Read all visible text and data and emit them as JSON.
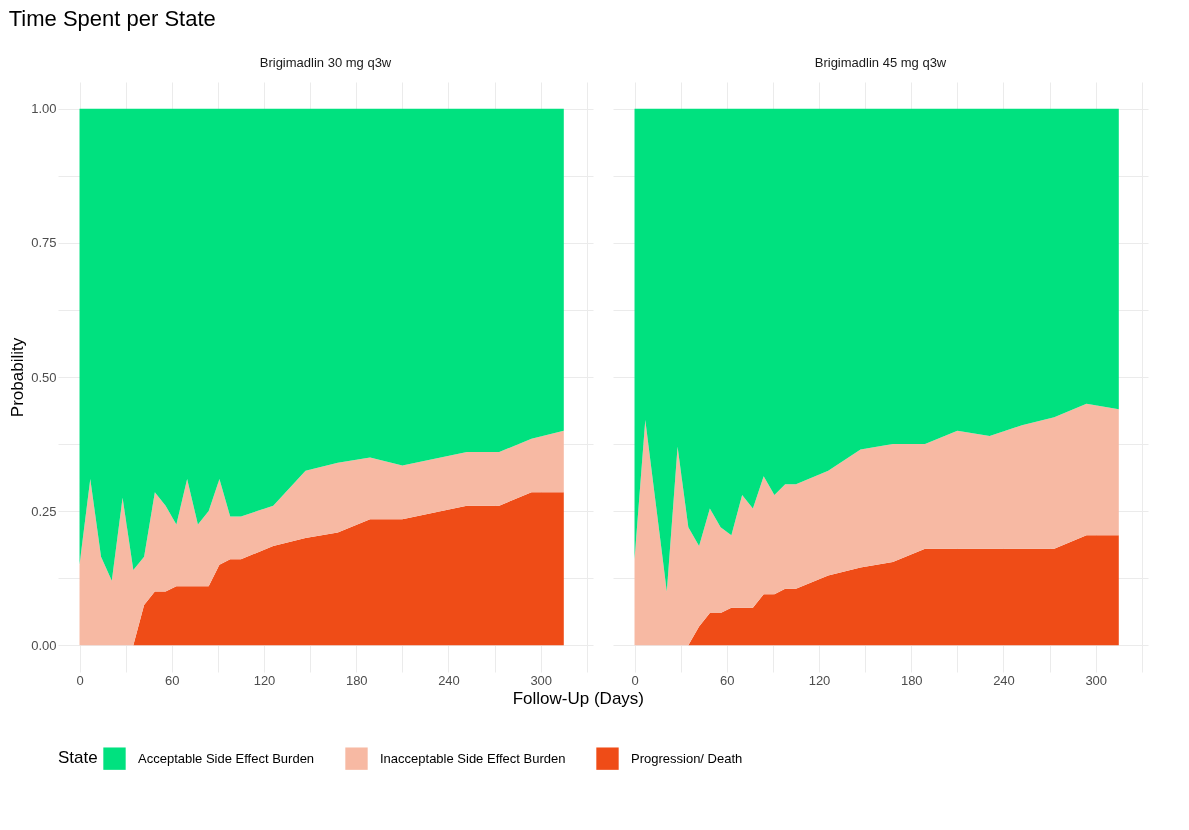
{
  "chart_data": [
    {
      "type": "area",
      "title": "Time Spent per State",
      "subtitle": "Brigimadlin 30 mg q3w",
      "xlabel": "Follow-Up (Days)",
      "ylabel": "Probability",
      "legend_title": "State",
      "legend": "bottom",
      "grid": true,
      "stacked": true,
      "x": [
        0,
        7,
        14,
        21,
        28,
        35,
        42,
        49,
        56,
        63,
        70,
        77,
        84,
        91,
        98,
        105,
        126,
        147,
        168,
        189,
        210,
        252,
        273,
        294,
        315
      ],
      "xlim": [
        -14,
        334
      ],
      "xticks": [
        0,
        {
          "value": 30,
          "label": null
        },
        60,
        {
          "value": 90,
          "label": null
        },
        120,
        {
          "value": 150,
          "label": null
        },
        180,
        {
          "value": 210,
          "label": null
        },
        240,
        {
          "value": 270,
          "label": null
        },
        300,
        {
          "value": 330,
          "label": null
        }
      ],
      "ylim": [
        -0.05,
        1.05
      ],
      "yticks": [
        "0.00",
        {
          "value": 0.125,
          "label": null
        },
        {
          "value": 0.25,
          "label": "0.25"
        },
        {
          "value": 0.375,
          "label": null
        },
        {
          "value": 0.5,
          "label": "0.50"
        },
        {
          "value": 0.625,
          "label": null
        },
        {
          "value": 0.75,
          "label": "0.75"
        },
        {
          "value": 0.875,
          "label": null
        },
        {
          "value": 1,
          "label": "1.00"
        }
      ],
      "series": [
        {
          "name": "Progression/ Death",
          "color": "#ef4c17",
          "values": [
            0,
            0,
            0,
            0,
            0,
            0,
            0.075,
            0.1,
            0.1,
            0.11,
            0.11,
            0.11,
            0.11,
            0.15,
            0.16,
            0.16,
            0.185,
            0.2,
            0.21,
            0.235,
            0.235,
            0.26,
            0.26,
            0.285,
            0.285
          ]
        },
        {
          "name": "Inacceptable Side Effect Burden",
          "color": "#f7b9a3",
          "values": [
            0.15,
            0.31,
            0.165,
            0.12,
            0.275,
            0.14,
            0.09,
            0.185,
            0.16,
            0.115,
            0.2,
            0.115,
            0.14,
            0.16,
            0.08,
            0.08,
            0.075,
            0.125,
            0.13,
            0.115,
            0.1,
            0.1,
            0.1,
            0.1,
            0.115
          ]
        },
        {
          "name": "Acceptable Side Effect Burden",
          "color": "#00e17f",
          "values": [
            0.85,
            0.69,
            0.835,
            0.88,
            0.725,
            0.86,
            0.835,
            0.715,
            0.74,
            0.775,
            0.69,
            0.775,
            0.75,
            0.69,
            0.76,
            0.76,
            0.74,
            0.675,
            0.66,
            0.65,
            0.665,
            0.64,
            0.64,
            0.615,
            0.6
          ]
        }
      ]
    },
    {
      "type": "area",
      "subtitle": "Brigimadlin 45 mg q3w",
      "legend": "bottom",
      "grid": true,
      "stacked": true,
      "tick_labels": "x",
      "x": [
        0,
        7,
        14,
        21,
        28,
        35,
        42,
        49,
        56,
        63,
        70,
        77,
        84,
        91,
        98,
        105,
        126,
        147,
        168,
        189,
        210,
        231,
        252,
        273,
        294,
        315
      ],
      "xlim": [
        -14,
        334
      ],
      "xticks": [
        0,
        {
          "value": 30,
          "label": null
        },
        60,
        {
          "value": 90,
          "label": null
        },
        120,
        {
          "value": 150,
          "label": null
        },
        180,
        {
          "value": 210,
          "label": null
        },
        240,
        {
          "value": 270,
          "label": null
        },
        300,
        {
          "value": 330,
          "label": null
        }
      ],
      "ylim": [
        -0.05,
        1.05
      ],
      "yticks": [
        0,
        0.125,
        0.25,
        0.375,
        0.5,
        0.625,
        0.75,
        0.875,
        1
      ],
      "series": [
        {
          "name": "Progression/ Death",
          "color": "#ef4c17",
          "values": [
            0,
            0,
            0,
            0,
            0,
            0,
            0.035,
            0.06,
            0.06,
            0.07,
            0.07,
            0.07,
            0.095,
            0.095,
            0.105,
            0.105,
            0.13,
            0.145,
            0.155,
            0.18,
            0.18,
            0.18,
            0.18,
            0.18,
            0.205,
            0.205
          ]
        },
        {
          "name": "Inacceptable Side Effect Burden",
          "color": "#f7b9a3",
          "values": [
            0.16,
            0.42,
            0.26,
            0.1,
            0.37,
            0.22,
            0.15,
            0.195,
            0.16,
            0.135,
            0.21,
            0.185,
            0.22,
            0.185,
            0.195,
            0.195,
            0.195,
            0.22,
            0.22,
            0.195,
            0.22,
            0.21,
            0.23,
            0.245,
            0.245,
            0.235
          ]
        },
        {
          "name": "Acceptable Side Effect Burden",
          "color": "#00e17f",
          "values": [
            0.84,
            0.58,
            0.74,
            0.9,
            0.63,
            0.78,
            0.815,
            0.745,
            0.78,
            0.795,
            0.72,
            0.745,
            0.685,
            0.72,
            0.7,
            0.7,
            0.675,
            0.635,
            0.625,
            0.625,
            0.6,
            0.61,
            0.59,
            0.575,
            0.55,
            0.56
          ]
        }
      ]
    }
  ]
}
